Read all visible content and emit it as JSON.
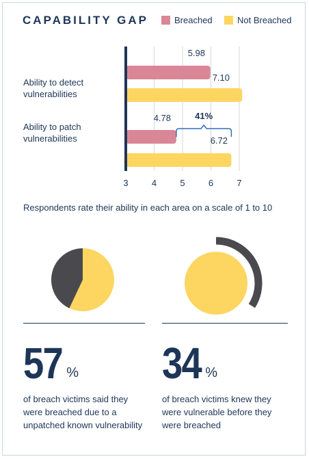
{
  "header": {
    "title": "CAPABILITY GAP"
  },
  "legend": [
    {
      "label": "Breached",
      "color": "#d98797"
    },
    {
      "label": "Not Breached",
      "color": "#fcd660"
    }
  ],
  "chart_data": {
    "type": "bar",
    "orientation": "horizontal",
    "categories": [
      "Ability to detect vulnerabilities",
      "Ability to patch vulnerabilities"
    ],
    "series": [
      {
        "name": "Breached",
        "values": [
          5.98,
          4.78
        ],
        "color": "#d98797"
      },
      {
        "name": "Not Breached",
        "values": [
          7.1,
          6.72
        ],
        "color": "#fcd660"
      }
    ],
    "value_labels": [
      [
        "5.98",
        "7.10"
      ],
      [
        "4.78",
        "6.72"
      ]
    ],
    "xlim": [
      3,
      7
    ],
    "xticks": [
      "3",
      "4",
      "5",
      "6",
      "7"
    ],
    "annotation": "41%",
    "grid": true
  },
  "categories_text": [
    "Ability to detect vulnerabilities",
    "Ability to patch vulnerabilities"
  ],
  "note": "Respondents rate their ability in each area on a scale of 1 to 10",
  "stats": [
    {
      "number": "57",
      "percent_sign": "%",
      "value": 57,
      "text": "of breach victims said they were breached due to a unpatched known vulnerability",
      "style": "pie"
    },
    {
      "number": "34",
      "percent_sign": "%",
      "value": 34,
      "text": "of breach victims knew they were vulnerable before they were breached",
      "style": "arc"
    }
  ],
  "colors": {
    "navy": "#1d3557",
    "yellow": "#fcd660",
    "pink": "#d98797",
    "dark_gray": "#4a4a4e",
    "grid": "#d7d7d7"
  }
}
